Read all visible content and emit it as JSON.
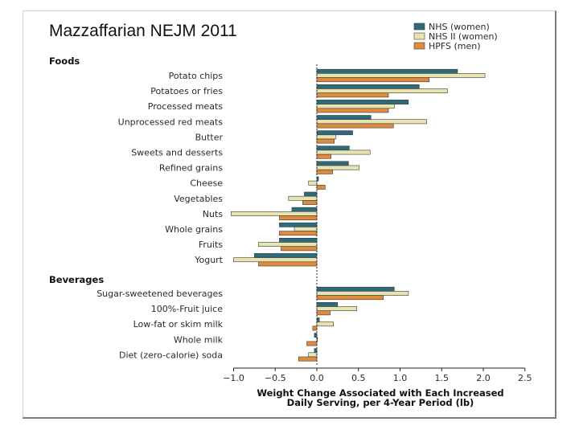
{
  "slide_title": "Mazzaffarian NEJM 2011",
  "colors": {
    "NHS (women)": "#2e6b7a",
    "NHS II (women)": "#e8e4b0",
    "HPFS (men)": "#e08a3c"
  },
  "chart_data": {
    "type": "bar",
    "orientation": "horizontal",
    "xlabel_lines": [
      "Weight Change Associated with Each Increased",
      "Daily Serving, per 4-Year Period (lb)"
    ],
    "xlim": [
      -1.0,
      2.5
    ],
    "xticks": [
      "−1.0",
      "−0.5",
      "0.0",
      "0.5",
      "1.0",
      "1.5",
      "2.0",
      "2.5"
    ],
    "tick_values": [
      -1.0,
      -0.5,
      0.0,
      0.5,
      1.0,
      1.5,
      2.0,
      2.5
    ],
    "legend_position": "top-right",
    "series_names": [
      "NHS (women)",
      "NHS II (women)",
      "HPFS (men)"
    ],
    "groups": [
      {
        "name": "Foods",
        "categories": [
          "Potato chips",
          "Potatoes or fries",
          "Processed meats",
          "Unprocessed red meats",
          "Butter",
          "Sweets and desserts",
          "Refined grains",
          "Cheese",
          "Vegetables",
          "Nuts",
          "Whole grains",
          "Fruits",
          "Yogurt"
        ],
        "series": [
          {
            "name": "NHS (women)",
            "values": [
              1.69,
              1.23,
              1.1,
              0.65,
              0.43,
              0.39,
              0.38,
              0.02,
              -0.15,
              -0.3,
              -0.45,
              -0.45,
              -0.75
            ]
          },
          {
            "name": "NHS II (women)",
            "values": [
              2.02,
              1.57,
              0.93,
              1.32,
              0.23,
              0.64,
              0.51,
              -0.1,
              -0.34,
              -1.03,
              -0.27,
              -0.7,
              -1.0
            ]
          },
          {
            "name": "HPFS (men)",
            "values": [
              1.35,
              0.86,
              0.86,
              0.92,
              0.21,
              0.17,
              0.19,
              0.1,
              -0.17,
              -0.45,
              -0.45,
              -0.43,
              -0.7
            ]
          }
        ]
      },
      {
        "name": "Beverages",
        "categories": [
          "Sugar-sweetened beverages",
          "100%-Fruit juice",
          "Low-fat or skim milk",
          "Whole milk",
          "Diet (zero-calorie) soda"
        ],
        "series": [
          {
            "name": "NHS (women)",
            "values": [
              0.93,
              0.25,
              0.03,
              -0.03,
              -0.03
            ]
          },
          {
            "name": "NHS II (women)",
            "values": [
              1.1,
              0.48,
              0.2,
              0.0,
              -0.1
            ]
          },
          {
            "name": "HPFS (men)",
            "values": [
              0.8,
              0.16,
              -0.05,
              -0.12,
              -0.22
            ]
          }
        ]
      }
    ]
  }
}
